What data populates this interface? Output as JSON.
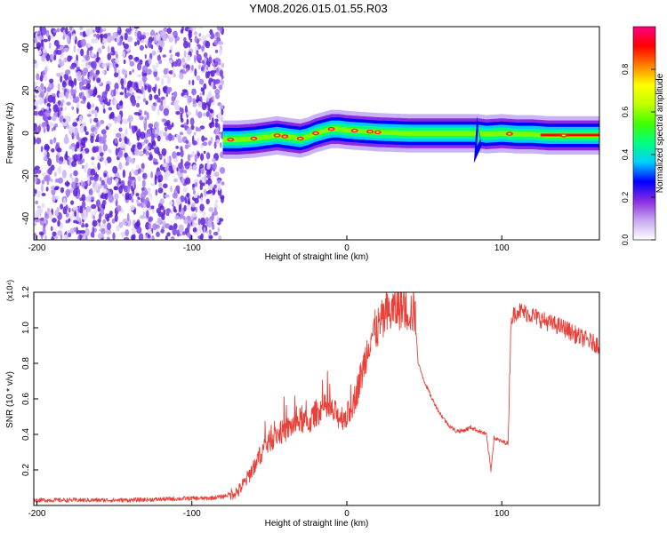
{
  "title": "YM08.2026.015.01.55.R03",
  "chart_data": [
    {
      "type": "heatmap",
      "xlabel": "Height of straight line (km)",
      "ylabel": "Frequency (Hz)",
      "xlim": [
        -202,
        163
      ],
      "ylim": [
        -50,
        50
      ],
      "x_ticks": [
        "-200",
        "-100",
        "0",
        "100"
      ],
      "y_ticks": [
        "-40",
        "-20",
        "0",
        "20",
        "40"
      ],
      "colorbar": {
        "label": "Normalized spectral amplitude",
        "range": [
          0,
          1
        ],
        "ticks": [
          "0.0",
          "0.2",
          "0.4",
          "0.6",
          "0.8"
        ],
        "colors": [
          "#ffffff",
          "#c8a8f0",
          "#8a2be2",
          "#0000ff",
          "#00d0ff",
          "#00ff80",
          "#40ff00",
          "#c0ff00",
          "#ffff00",
          "#ff8000",
          "#ff0000",
          "#ff0080"
        ]
      },
      "noise_region_x": [
        -202,
        -80
      ],
      "signal_ridge": {
        "x": [
          -80,
          -70,
          -60,
          -50,
          -45,
          -40,
          -35,
          -30,
          -25,
          -20,
          -15,
          -10,
          -5,
          0,
          10,
          20,
          40,
          60,
          80,
          85,
          90,
          100,
          110,
          120,
          130,
          140,
          150,
          163
        ],
        "freq": [
          -3,
          -3,
          -2.5,
          -1.5,
          -1,
          -1.5,
          -2,
          -2.5,
          -1.5,
          0,
          1,
          2,
          2,
          1.5,
          1,
          0.5,
          0,
          0,
          0,
          0,
          -0.5,
          0,
          -0.5,
          -0.5,
          -1,
          -1,
          -1,
          -1
        ]
      },
      "hot_spots_x": [
        -75,
        -60,
        -45,
        -40,
        -30,
        -20,
        -10,
        5,
        15,
        20,
        105,
        140
      ]
    },
    {
      "type": "line",
      "xlabel": "Height of straight line (km)",
      "ylabel": "SNR (10 * v/v)",
      "y_multiplier": "(x10⁴)",
      "xlim": [
        -202,
        163
      ],
      "ylim": [
        0,
        1.2
      ],
      "x_ticks": [
        "-200",
        "-100",
        "0",
        "100"
      ],
      "y_ticks": [
        "0.2",
        "0.4",
        "0.6",
        "0.8",
        "1.0",
        "1.2"
      ],
      "color": "#e8413a",
      "x": [
        -202,
        -180,
        -160,
        -140,
        -120,
        -100,
        -90,
        -80,
        -70,
        -65,
        -60,
        -55,
        -50,
        -45,
        -40,
        -35,
        -30,
        -25,
        -20,
        -15,
        -10,
        -5,
        0,
        5,
        10,
        15,
        20,
        25,
        30,
        35,
        40,
        44,
        46,
        50,
        55,
        60,
        65,
        70,
        75,
        80,
        85,
        90,
        93,
        95,
        100,
        104,
        106,
        110,
        120,
        130,
        140,
        150,
        163
      ],
      "y": [
        0.03,
        0.03,
        0.03,
        0.03,
        0.035,
        0.04,
        0.04,
        0.05,
        0.08,
        0.14,
        0.22,
        0.3,
        0.36,
        0.4,
        0.42,
        0.45,
        0.48,
        0.46,
        0.52,
        0.55,
        0.53,
        0.5,
        0.5,
        0.6,
        0.75,
        0.95,
        1.0,
        1.06,
        1.1,
        1.12,
        1.1,
        1.08,
        0.8,
        0.7,
        0.6,
        0.52,
        0.46,
        0.42,
        0.42,
        0.44,
        0.42,
        0.4,
        0.2,
        0.38,
        0.36,
        0.35,
        1.05,
        1.1,
        1.07,
        1.03,
        1.0,
        0.95,
        0.9
      ]
    }
  ]
}
